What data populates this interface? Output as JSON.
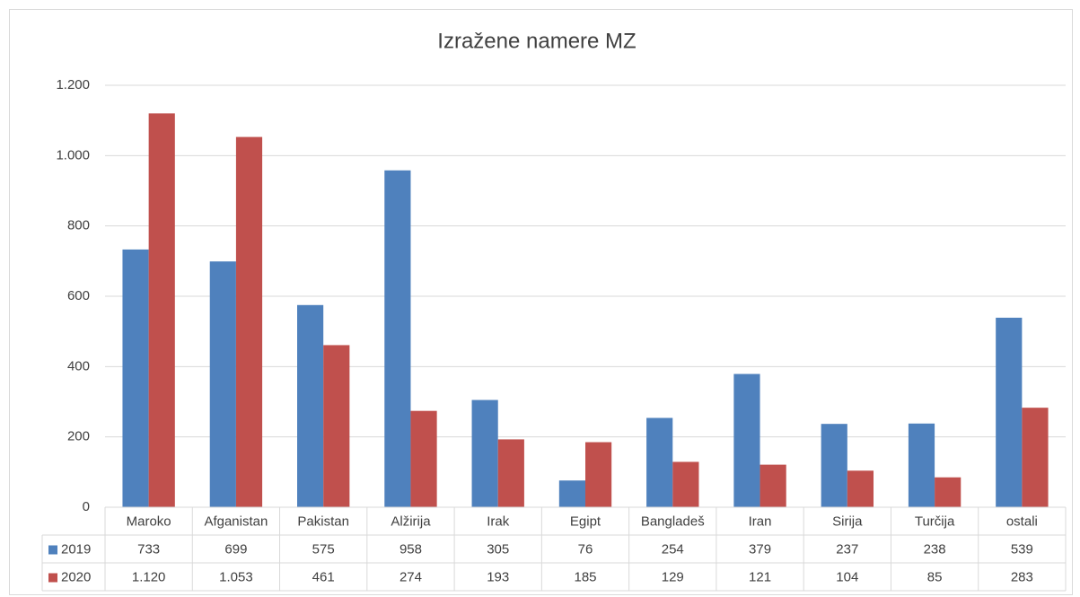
{
  "chart_data": {
    "type": "bar",
    "title": "Izražene namere MZ",
    "categories": [
      "Maroko",
      "Afganistan",
      "Pakistan",
      "Alžirija",
      "Irak",
      "Egipt",
      "Bangladeš",
      "Iran",
      "Sirija",
      "Turčija",
      "ostali"
    ],
    "series": [
      {
        "name": "2019",
        "color": "#4f81bd",
        "values": [
          733,
          699,
          575,
          958,
          305,
          76,
          254,
          379,
          237,
          238,
          539
        ]
      },
      {
        "name": "2020",
        "color": "#c0504d",
        "values": [
          1120,
          1053,
          461,
          274,
          193,
          185,
          129,
          121,
          104,
          85,
          283
        ],
        "value_labels": [
          "1.120",
          "1.053",
          "461",
          "274",
          "193",
          "185",
          "129",
          "121",
          "104",
          "85",
          "283"
        ]
      }
    ],
    "ylim": [
      0,
      1200
    ],
    "yticks": [
      0,
      200,
      400,
      600,
      800,
      {
        "value": 1000,
        "label": "1.000"
      },
      {
        "value": 1200,
        "label": "1.200"
      }
    ],
    "grid": true
  }
}
